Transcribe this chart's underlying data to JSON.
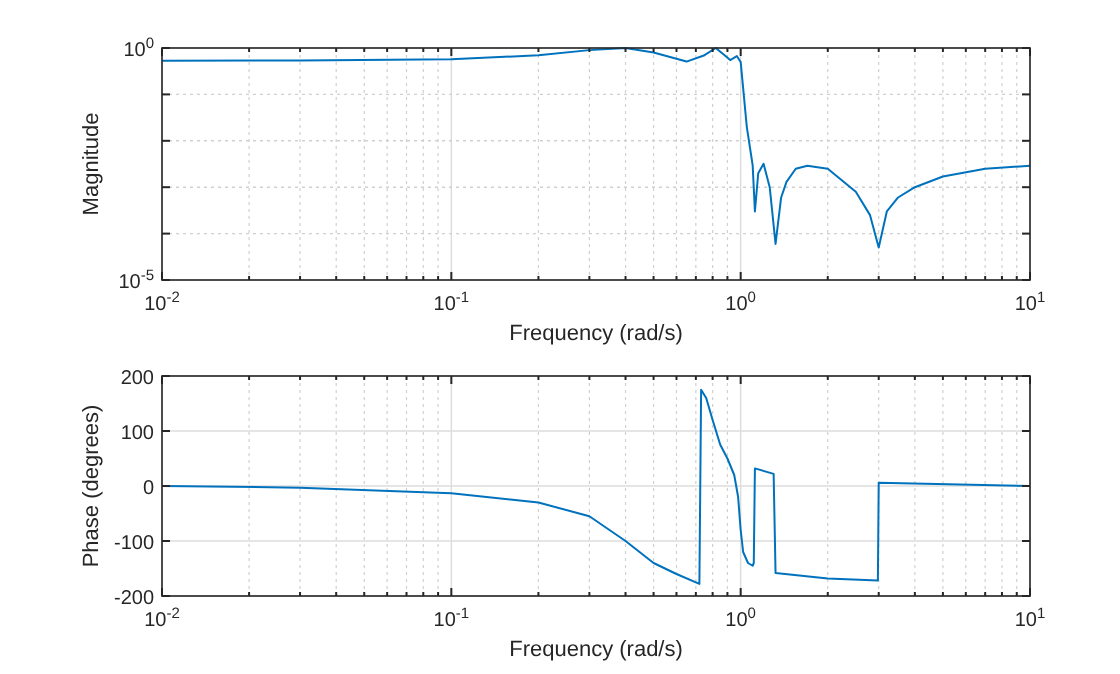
{
  "chart_data": [
    {
      "type": "line",
      "xlabel": "Frequency (rad/s)",
      "ylabel": "Magnitude",
      "log": "xy",
      "grid": true,
      "xlim": [
        0.01,
        10
      ],
      "ylim": [
        1e-05,
        1
      ],
      "xticks": [
        {
          "value": 0.01,
          "label": "10$^{-2}$"
        },
        {
          "value": 0.1,
          "label": "10$^{-1}$"
        },
        {
          "value": 1,
          "label": "10$^{0}$"
        },
        {
          "value": 10,
          "label": "10$^{1}$"
        }
      ],
      "yticks": [
        {
          "value": 1e-05,
          "label": "10$^{-5}$"
        },
        {
          "value": 0.0001,
          "label": null
        },
        {
          "value": 0.001,
          "label": null
        },
        {
          "value": 0.01,
          "label": null
        },
        {
          "value": 0.1,
          "label": null
        },
        {
          "value": 1,
          "label": "10$^{0}$"
        }
      ],
      "series": [
        {
          "color": "#0072bd",
          "x": [
            0.01,
            0.03,
            0.1,
            0.2,
            0.3,
            0.4,
            0.5,
            0.65,
            0.75,
            0.82,
            0.88,
            0.92,
            0.97,
            1.0,
            1.05,
            1.1,
            1.12,
            1.15,
            1.2,
            1.26,
            1.32,
            1.38,
            1.44,
            1.55,
            1.7,
            2.0,
            2.5,
            2.8,
            3.0,
            3.2,
            3.5,
            4,
            5,
            7,
            10
          ],
          "values": [
            0.53,
            0.54,
            0.57,
            0.7,
            0.9,
            1.0,
            0.8,
            0.51,
            0.7,
            1.0,
            0.7,
            0.55,
            0.67,
            0.5,
            0.02,
            0.003,
            0.0003,
            0.002,
            0.0032,
            0.001,
            6e-05,
            0.0006,
            0.0013,
            0.0025,
            0.0029,
            0.0025,
            0.0008,
            0.00025,
            5e-05,
            0.0003,
            0.0006,
            0.001,
            0.0017,
            0.0025,
            0.0029
          ]
        }
      ]
    },
    {
      "type": "line",
      "xlabel": "Frequency (rad/s)",
      "ylabel": "Phase (degrees)",
      "log": "x",
      "grid": true,
      "xlim": [
        0.01,
        10
      ],
      "ylim": [
        -200,
        200
      ],
      "xticks": [
        {
          "value": 0.01,
          "label": "10$^{-2}$"
        },
        {
          "value": 0.1,
          "label": "10$^{-1}$"
        },
        {
          "value": 1,
          "label": "10$^{0}$"
        },
        {
          "value": 10,
          "label": "10$^{1}$"
        }
      ],
      "yticks": [
        -200,
        -100,
        0,
        100,
        200
      ],
      "series": [
        {
          "color": "#0072bd",
          "x": [
            0.01,
            0.03,
            0.1,
            0.2,
            0.3,
            0.4,
            0.5,
            0.6,
            0.72,
            0.73,
            0.76,
            0.8,
            0.85,
            0.9,
            0.95,
            0.98,
            1.0,
            1.02,
            1.06,
            1.1,
            1.11,
            1.12,
            1.3,
            1.32,
            2.0,
            2.98,
            3.0,
            10
          ],
          "values": [
            0,
            -3,
            -13,
            -30,
            -55,
            -100,
            -140,
            -160,
            -178,
            175,
            160,
            120,
            75,
            50,
            20,
            -20,
            -80,
            -120,
            -140,
            -145,
            -140,
            32,
            22,
            -158,
            -168,
            -172,
            6,
            0
          ]
        }
      ]
    }
  ]
}
